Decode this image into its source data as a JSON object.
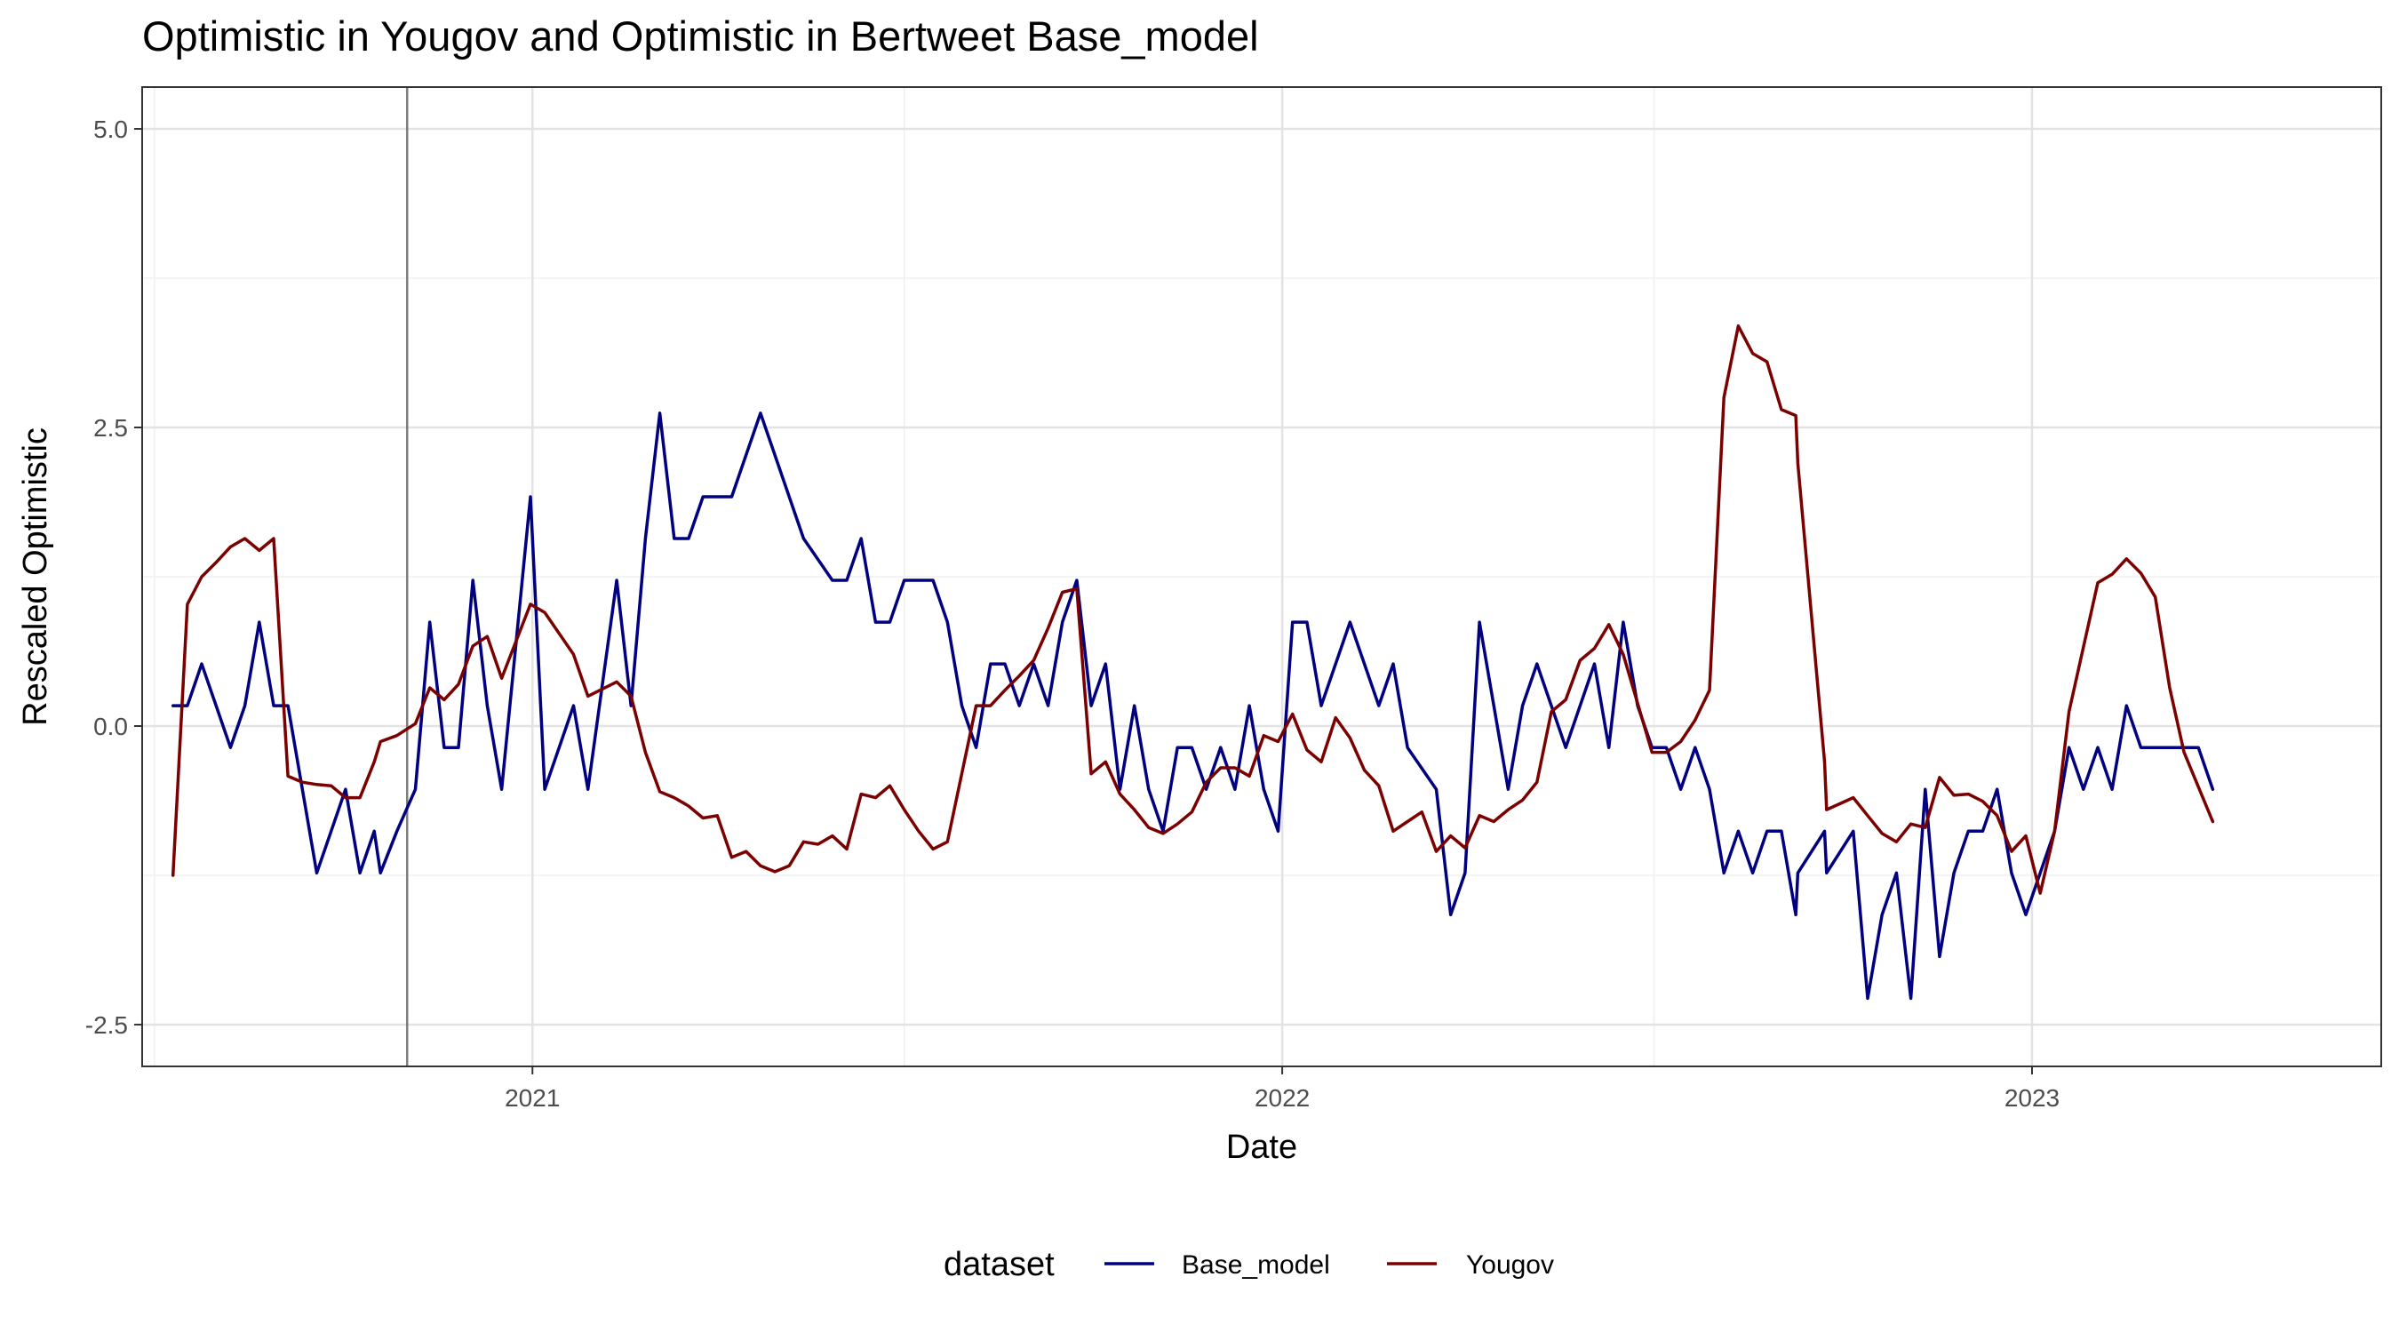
{
  "chart_data": {
    "type": "line",
    "title": "Optimistic  in Yougov and  Optimistic  in Bertweet  Base_model",
    "xlabel": "Date",
    "ylabel": "Rescaled  Optimistic",
    "xlim": [
      "2020-06-25",
      "2023-06-20"
    ],
    "ylim": [
      -2.85,
      5.35
    ],
    "x_ticks": [
      {
        "date": "2021-01-01",
        "label": "2021"
      },
      {
        "date": "2022-01-01",
        "label": "2022"
      },
      {
        "date": "2023-01-01",
        "label": "2023"
      }
    ],
    "y_ticks": [
      {
        "value": -2.5,
        "label": "-2.5"
      },
      {
        "value": 0.0,
        "label": "0.0"
      },
      {
        "value": 2.5,
        "label": "2.5"
      },
      {
        "value": 5.0,
        "label": "5.0"
      }
    ],
    "x_minor_ticks": [
      "2020-07-01",
      "2021-07-01",
      "2022-07-01"
    ],
    "y_minor_ticks": [
      -1.25,
      1.25,
      3.75
    ],
    "grid": true,
    "vline": {
      "date": "2020-11-01",
      "color": "#7f7f7f"
    },
    "legend": {
      "title": "dataset",
      "position": "bottom"
    },
    "series": [
      {
        "name": "Base_model",
        "color": "#000080",
        "points": [
          [
            "2020-07-10",
            0.17
          ],
          [
            "2020-07-17",
            0.17
          ],
          [
            "2020-07-24",
            0.52
          ],
          [
            "2020-07-31",
            0.17
          ],
          [
            "2020-08-07",
            -0.18
          ],
          [
            "2020-08-14",
            0.17
          ],
          [
            "2020-08-21",
            0.87
          ],
          [
            "2020-08-28",
            0.17
          ],
          [
            "2020-09-04",
            0.17
          ],
          [
            "2020-09-11",
            -0.53
          ],
          [
            "2020-09-18",
            -1.23
          ],
          [
            "2020-09-25",
            -0.88
          ],
          [
            "2020-10-02",
            -0.53
          ],
          [
            "2020-10-09",
            -1.23
          ],
          [
            "2020-10-16",
            -0.88
          ],
          [
            "2020-10-19",
            -1.23
          ],
          [
            "2020-10-27",
            -0.88
          ],
          [
            "2020-11-05",
            -0.53
          ],
          [
            "2020-11-12",
            0.87
          ],
          [
            "2020-11-19",
            -0.18
          ],
          [
            "2020-11-26",
            -0.18
          ],
          [
            "2020-12-03",
            1.22
          ],
          [
            "2020-12-10",
            0.17
          ],
          [
            "2020-12-17",
            -0.53
          ],
          [
            "2020-12-31",
            1.92
          ],
          [
            "2021-01-07",
            -0.53
          ],
          [
            "2021-01-21",
            0.17
          ],
          [
            "2021-01-28",
            -0.53
          ],
          [
            "2021-02-11",
            1.22
          ],
          [
            "2021-02-18",
            0.17
          ],
          [
            "2021-02-25",
            1.57
          ],
          [
            "2021-03-04",
            2.62
          ],
          [
            "2021-03-11",
            1.57
          ],
          [
            "2021-03-18",
            1.57
          ],
          [
            "2021-03-25",
            1.92
          ],
          [
            "2021-04-08",
            1.92
          ],
          [
            "2021-04-22",
            2.62
          ],
          [
            "2021-05-13",
            1.57
          ],
          [
            "2021-05-27",
            1.22
          ],
          [
            "2021-06-03",
            1.22
          ],
          [
            "2021-06-10",
            1.57
          ],
          [
            "2021-06-17",
            0.87
          ],
          [
            "2021-06-24",
            0.87
          ],
          [
            "2021-07-01",
            1.22
          ],
          [
            "2021-07-15",
            1.22
          ],
          [
            "2021-07-22",
            0.87
          ],
          [
            "2021-07-29",
            0.17
          ],
          [
            "2021-08-05",
            -0.18
          ],
          [
            "2021-08-12",
            0.52
          ],
          [
            "2021-08-19",
            0.52
          ],
          [
            "2021-08-26",
            0.17
          ],
          [
            "2021-09-02",
            0.52
          ],
          [
            "2021-09-09",
            0.17
          ],
          [
            "2021-09-16",
            0.87
          ],
          [
            "2021-09-23",
            1.22
          ],
          [
            "2021-09-30",
            0.17
          ],
          [
            "2021-10-07",
            0.52
          ],
          [
            "2021-10-14",
            -0.53
          ],
          [
            "2021-10-21",
            0.17
          ],
          [
            "2021-10-28",
            -0.53
          ],
          [
            "2021-11-04",
            -0.88
          ],
          [
            "2021-11-11",
            -0.18
          ],
          [
            "2021-11-18",
            -0.18
          ],
          [
            "2021-11-25",
            -0.53
          ],
          [
            "2021-12-02",
            -0.18
          ],
          [
            "2021-12-09",
            -0.53
          ],
          [
            "2021-12-16",
            0.17
          ],
          [
            "2021-12-23",
            -0.53
          ],
          [
            "2021-12-30",
            -0.88
          ],
          [
            "2022-01-06",
            0.87
          ],
          [
            "2022-01-13",
            0.87
          ],
          [
            "2022-01-20",
            0.17
          ],
          [
            "2022-02-03",
            0.87
          ],
          [
            "2022-02-17",
            0.17
          ],
          [
            "2022-02-24",
            0.52
          ],
          [
            "2022-03-03",
            -0.18
          ],
          [
            "2022-03-17",
            -0.53
          ],
          [
            "2022-03-24",
            -1.58
          ],
          [
            "2022-03-31",
            -1.23
          ],
          [
            "2022-04-07",
            0.87
          ],
          [
            "2022-04-21",
            -0.53
          ],
          [
            "2022-04-28",
            0.17
          ],
          [
            "2022-05-05",
            0.52
          ],
          [
            "2022-05-19",
            -0.18
          ],
          [
            "2022-06-02",
            0.52
          ],
          [
            "2022-06-09",
            -0.18
          ],
          [
            "2022-06-16",
            0.87
          ],
          [
            "2022-06-23",
            0.17
          ],
          [
            "2022-06-30",
            -0.18
          ],
          [
            "2022-07-07",
            -0.18
          ],
          [
            "2022-07-14",
            -0.53
          ],
          [
            "2022-07-21",
            -0.18
          ],
          [
            "2022-07-28",
            -0.53
          ],
          [
            "2022-08-04",
            -1.23
          ],
          [
            "2022-08-11",
            -0.88
          ],
          [
            "2022-08-18",
            -1.23
          ],
          [
            "2022-08-25",
            -0.88
          ],
          [
            "2022-09-01",
            -0.88
          ],
          [
            "2022-09-08",
            -1.58
          ],
          [
            "2022-09-09",
            -1.23
          ],
          [
            "2022-09-22",
            -0.88
          ],
          [
            "2022-09-23",
            -1.23
          ],
          [
            "2022-10-06",
            -0.88
          ],
          [
            "2022-10-13",
            -2.28
          ],
          [
            "2022-10-20",
            -1.58
          ],
          [
            "2022-10-27",
            -1.23
          ],
          [
            "2022-11-03",
            -2.28
          ],
          [
            "2022-11-10",
            -0.53
          ],
          [
            "2022-11-17",
            -1.93
          ],
          [
            "2022-11-24",
            -1.23
          ],
          [
            "2022-12-01",
            -0.88
          ],
          [
            "2022-12-08",
            -0.88
          ],
          [
            "2022-12-15",
            -0.53
          ],
          [
            "2022-12-22",
            -1.23
          ],
          [
            "2022-12-29",
            -1.58
          ],
          [
            "2023-01-05",
            -1.23
          ],
          [
            "2023-01-12",
            -0.88
          ],
          [
            "2023-01-19",
            -0.18
          ],
          [
            "2023-01-26",
            -0.53
          ],
          [
            "2023-02-02",
            -0.18
          ],
          [
            "2023-02-09",
            -0.53
          ],
          [
            "2023-02-16",
            0.17
          ],
          [
            "2023-02-23",
            -0.18
          ],
          [
            "2023-03-16",
            -0.18
          ],
          [
            "2023-03-23",
            -0.18
          ],
          [
            "2023-03-30",
            -0.53
          ]
        ]
      },
      {
        "name": "Yougov",
        "color": "#7b0000",
        "points": [
          [
            "2020-07-10",
            -1.25
          ],
          [
            "2020-07-17",
            1.02
          ],
          [
            "2020-07-24",
            1.25
          ],
          [
            "2020-07-31",
            1.37
          ],
          [
            "2020-08-07",
            1.5
          ],
          [
            "2020-08-14",
            1.57
          ],
          [
            "2020-08-21",
            1.47
          ],
          [
            "2020-08-28",
            1.57
          ],
          [
            "2020-09-04",
            -0.42
          ],
          [
            "2020-09-11",
            -0.47
          ],
          [
            "2020-09-18",
            -0.49
          ],
          [
            "2020-09-25",
            -0.5
          ],
          [
            "2020-10-02",
            -0.6
          ],
          [
            "2020-10-09",
            -0.6
          ],
          [
            "2020-10-16",
            -0.3
          ],
          [
            "2020-10-19",
            -0.13
          ],
          [
            "2020-10-27",
            -0.08
          ],
          [
            "2020-11-05",
            0.02
          ],
          [
            "2020-11-12",
            0.32
          ],
          [
            "2020-11-19",
            0.22
          ],
          [
            "2020-11-26",
            0.35
          ],
          [
            "2020-12-03",
            0.67
          ],
          [
            "2020-12-10",
            0.75
          ],
          [
            "2020-12-17",
            0.4
          ],
          [
            "2020-12-31",
            1.02
          ],
          [
            "2021-01-07",
            0.95
          ],
          [
            "2021-01-21",
            0.6
          ],
          [
            "2021-01-28",
            0.25
          ],
          [
            "2021-02-11",
            0.37
          ],
          [
            "2021-02-18",
            0.25
          ],
          [
            "2021-02-25",
            -0.22
          ],
          [
            "2021-03-04",
            -0.55
          ],
          [
            "2021-03-11",
            -0.6
          ],
          [
            "2021-03-18",
            -0.67
          ],
          [
            "2021-03-25",
            -0.77
          ],
          [
            "2021-04-01",
            -0.75
          ],
          [
            "2021-04-08",
            -1.1
          ],
          [
            "2021-04-15",
            -1.05
          ],
          [
            "2021-04-22",
            -1.17
          ],
          [
            "2021-04-29",
            -1.22
          ],
          [
            "2021-05-06",
            -1.17
          ],
          [
            "2021-05-13",
            -0.97
          ],
          [
            "2021-05-20",
            -0.99
          ],
          [
            "2021-05-27",
            -0.92
          ],
          [
            "2021-06-03",
            -1.03
          ],
          [
            "2021-06-10",
            -0.57
          ],
          [
            "2021-06-17",
            -0.6
          ],
          [
            "2021-06-24",
            -0.5
          ],
          [
            "2021-07-01",
            -0.7
          ],
          [
            "2021-07-08",
            -0.88
          ],
          [
            "2021-07-15",
            -1.03
          ],
          [
            "2021-07-22",
            -0.97
          ],
          [
            "2021-08-05",
            0.17
          ],
          [
            "2021-08-12",
            0.17
          ],
          [
            "2021-08-19",
            0.3
          ],
          [
            "2021-08-26",
            0.42
          ],
          [
            "2021-09-02",
            0.55
          ],
          [
            "2021-09-09",
            0.82
          ],
          [
            "2021-09-16",
            1.12
          ],
          [
            "2021-09-23",
            1.15
          ],
          [
            "2021-09-30",
            -0.4
          ],
          [
            "2021-10-07",
            -0.3
          ],
          [
            "2021-10-14",
            -0.57
          ],
          [
            "2021-10-21",
            -0.7
          ],
          [
            "2021-10-28",
            -0.85
          ],
          [
            "2021-11-04",
            -0.9
          ],
          [
            "2021-11-11",
            -0.82
          ],
          [
            "2021-11-18",
            -0.72
          ],
          [
            "2021-11-25",
            -0.47
          ],
          [
            "2021-12-02",
            -0.35
          ],
          [
            "2021-12-09",
            -0.35
          ],
          [
            "2021-12-16",
            -0.42
          ],
          [
            "2021-12-23",
            -0.08
          ],
          [
            "2021-12-30",
            -0.13
          ],
          [
            "2022-01-06",
            0.1
          ],
          [
            "2022-01-13",
            -0.2
          ],
          [
            "2022-01-20",
            -0.3
          ],
          [
            "2022-01-27",
            0.07
          ],
          [
            "2022-02-03",
            -0.1
          ],
          [
            "2022-02-10",
            -0.37
          ],
          [
            "2022-02-17",
            -0.5
          ],
          [
            "2022-02-24",
            -0.88
          ],
          [
            "2022-03-03",
            -0.8
          ],
          [
            "2022-03-10",
            -0.72
          ],
          [
            "2022-03-17",
            -1.05
          ],
          [
            "2022-03-24",
            -0.92
          ],
          [
            "2022-03-31",
            -1.02
          ],
          [
            "2022-04-07",
            -0.75
          ],
          [
            "2022-04-14",
            -0.8
          ],
          [
            "2022-04-21",
            -0.7
          ],
          [
            "2022-04-28",
            -0.62
          ],
          [
            "2022-05-05",
            -0.47
          ],
          [
            "2022-05-12",
            0.12
          ],
          [
            "2022-05-19",
            0.22
          ],
          [
            "2022-05-26",
            0.55
          ],
          [
            "2022-06-02",
            0.65
          ],
          [
            "2022-06-09",
            0.85
          ],
          [
            "2022-06-16",
            0.6
          ],
          [
            "2022-06-30",
            -0.22
          ],
          [
            "2022-07-07",
            -0.22
          ],
          [
            "2022-07-14",
            -0.13
          ],
          [
            "2022-07-21",
            0.05
          ],
          [
            "2022-07-28",
            0.3
          ],
          [
            "2022-08-04",
            2.75
          ],
          [
            "2022-08-11",
            3.35
          ],
          [
            "2022-08-18",
            3.12
          ],
          [
            "2022-08-25",
            3.05
          ],
          [
            "2022-09-01",
            2.65
          ],
          [
            "2022-09-08",
            2.6
          ],
          [
            "2022-09-09",
            2.2
          ],
          [
            "2022-09-22",
            -0.3
          ],
          [
            "2022-09-23",
            -0.7
          ],
          [
            "2022-10-06",
            -0.6
          ],
          [
            "2022-10-13",
            -0.75
          ],
          [
            "2022-10-20",
            -0.9
          ],
          [
            "2022-10-27",
            -0.97
          ],
          [
            "2022-11-03",
            -0.82
          ],
          [
            "2022-11-10",
            -0.85
          ],
          [
            "2022-11-17",
            -0.43
          ],
          [
            "2022-11-24",
            -0.58
          ],
          [
            "2022-12-01",
            -0.57
          ],
          [
            "2022-12-08",
            -0.63
          ],
          [
            "2022-12-15",
            -0.75
          ],
          [
            "2022-12-22",
            -1.05
          ],
          [
            "2022-12-29",
            -0.92
          ],
          [
            "2023-01-05",
            -1.4
          ],
          [
            "2023-01-12",
            -0.88
          ],
          [
            "2023-01-19",
            0.12
          ],
          [
            "2023-02-02",
            1.2
          ],
          [
            "2023-02-09",
            1.27
          ],
          [
            "2023-02-16",
            1.4
          ],
          [
            "2023-02-23",
            1.28
          ],
          [
            "2023-03-02",
            1.08
          ],
          [
            "2023-03-09",
            0.32
          ],
          [
            "2023-03-16",
            -0.22
          ],
          [
            "2023-03-30",
            -0.8
          ]
        ]
      }
    ]
  }
}
